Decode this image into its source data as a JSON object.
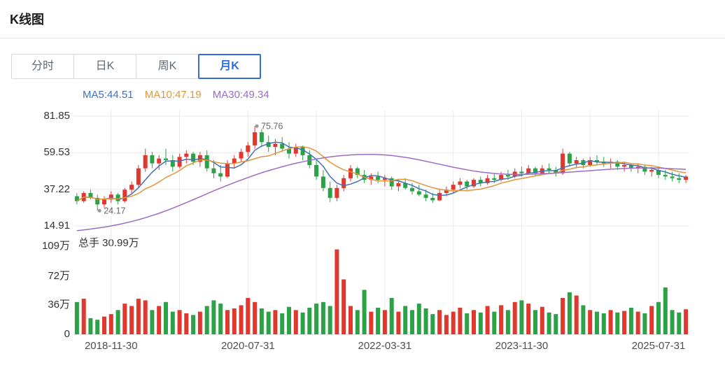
{
  "header": {
    "title": "K线图"
  },
  "tabs": [
    {
      "label": "分时",
      "active": false
    },
    {
      "label": "日K",
      "active": false
    },
    {
      "label": "周K",
      "active": false
    },
    {
      "label": "月K",
      "active": true
    }
  ],
  "legend": {
    "ma5": "MA5:44.51",
    "ma10": "MA10:47.19",
    "ma30": "MA30:49.34"
  },
  "volume_label": "总手 30.99万",
  "colors": {
    "up": "#e0382d",
    "down": "#2ba245",
    "ma5": "#4272b6",
    "ma10": "#e2953b",
    "ma30": "#9c6cc3",
    "tab_active": "#2e6be5",
    "grid": "#e9e9e9",
    "axis_text": "#333333"
  },
  "chart_data": {
    "type": "candlestick",
    "title": "月K K线图 (monthly candlestick with volume)",
    "price_range": [
      14.91,
      81.85
    ],
    "volume_range": [
      0,
      109
    ],
    "price_ticks": [
      {
        "label": "81.85",
        "value": 81.85
      },
      {
        "label": "59.53",
        "value": 59.53
      },
      {
        "label": "37.22",
        "value": 37.22
      },
      {
        "label": "14.91",
        "value": 14.91
      }
    ],
    "volume_ticks": [
      {
        "label": "109万",
        "value": 109
      },
      {
        "label": "72万",
        "value": 72
      },
      {
        "label": "36万",
        "value": 36
      },
      {
        "label": "0",
        "value": 0
      }
    ],
    "x_ticks": [
      {
        "label": "2018-11-30",
        "index": 5
      },
      {
        "label": "2020-07-31",
        "index": 25
      },
      {
        "label": "2022-03-31",
        "index": 45
      },
      {
        "label": "2023-11-30",
        "index": 65
      },
      {
        "label": "2025-07-31",
        "index": 85
      }
    ],
    "grid_indices": [
      5,
      15,
      25,
      35,
      45,
      55,
      65,
      75,
      85
    ],
    "annotations": [
      {
        "label": "75.76",
        "candle_index": 26,
        "price": 75.76,
        "position": "high"
      },
      {
        "label": "24.17",
        "candle_index": 3,
        "price": 24.17,
        "position": "low"
      }
    ],
    "candles_columns": [
      "month",
      "open",
      "high",
      "low",
      "close",
      "volume_wan"
    ],
    "candles": [
      [
        "2018-06",
        33,
        35,
        28,
        30,
        40
      ],
      [
        "2018-07",
        30,
        36,
        29,
        35,
        44
      ],
      [
        "2018-08",
        35,
        37,
        31,
        32,
        20
      ],
      [
        "2018-09",
        32,
        34,
        24.17,
        28,
        18
      ],
      [
        "2018-10",
        28,
        33,
        26,
        31,
        22
      ],
      [
        "2018-11",
        31,
        36,
        29,
        34,
        25
      ],
      [
        "2018-12",
        34,
        35,
        28,
        30,
        30
      ],
      [
        "2019-01",
        30,
        38,
        29,
        37,
        38
      ],
      [
        "2019-02",
        37,
        42,
        35,
        40,
        35
      ],
      [
        "2019-03",
        40,
        52,
        38,
        50,
        44
      ],
      [
        "2019-04",
        50,
        62,
        48,
        58,
        42
      ],
      [
        "2019-05",
        58,
        60,
        50,
        53,
        30
      ],
      [
        "2019-06",
        53,
        58,
        49,
        56,
        35
      ],
      [
        "2019-07",
        56,
        62,
        52,
        55,
        40
      ],
      [
        "2019-08",
        55,
        58,
        48,
        51,
        28
      ],
      [
        "2019-09",
        51,
        59,
        50,
        57,
        30
      ],
      [
        "2019-10",
        57,
        61,
        53,
        59,
        26
      ],
      [
        "2019-11",
        59,
        60,
        52,
        54,
        24
      ],
      [
        "2019-12",
        54,
        60,
        51,
        58,
        28
      ],
      [
        "2020-01",
        58,
        61,
        48,
        50,
        35
      ],
      [
        "2020-02",
        50,
        55,
        44,
        47,
        42
      ],
      [
        "2020-03",
        47,
        52,
        42,
        45,
        38
      ],
      [
        "2020-04",
        45,
        55,
        44,
        53,
        30
      ],
      [
        "2020-05",
        53,
        58,
        50,
        56,
        32
      ],
      [
        "2020-06",
        56,
        62,
        54,
        60,
        36
      ],
      [
        "2020-07",
        60,
        66,
        57,
        64,
        45
      ],
      [
        "2020-08",
        64,
        75.76,
        62,
        72,
        40
      ],
      [
        "2020-09",
        72,
        74,
        63,
        66,
        32
      ],
      [
        "2020-10",
        66,
        70,
        60,
        63,
        28
      ],
      [
        "2020-11",
        63,
        68,
        58,
        65,
        30
      ],
      [
        "2020-12",
        65,
        69,
        60,
        62,
        26
      ],
      [
        "2021-01",
        62,
        66,
        56,
        59,
        34
      ],
      [
        "2021-02",
        59,
        65,
        57,
        63,
        30
      ],
      [
        "2021-03",
        63,
        64,
        55,
        58,
        27
      ],
      [
        "2021-04",
        58,
        61,
        50,
        52,
        33
      ],
      [
        "2021-05",
        52,
        56,
        43,
        45,
        38
      ],
      [
        "2021-06",
        45,
        49,
        36,
        38,
        40
      ],
      [
        "2021-07",
        38,
        42,
        29.5,
        32,
        35
      ],
      [
        "2021-08",
        32,
        40,
        30,
        38,
        105
      ],
      [
        "2021-09",
        38,
        46,
        36,
        44,
        68
      ],
      [
        "2021-10",
        44,
        52,
        42,
        50,
        35
      ],
      [
        "2021-11",
        50,
        51,
        44,
        46,
        30
      ],
      [
        "2021-12",
        46,
        49,
        41,
        43,
        55
      ],
      [
        "2022-01",
        43,
        47,
        40,
        45,
        28
      ],
      [
        "2022-02",
        45,
        48,
        41,
        43,
        33
      ],
      [
        "2022-03",
        43,
        46,
        39,
        44,
        30
      ],
      [
        "2022-04",
        44,
        45,
        37,
        39,
        45
      ],
      [
        "2022-05",
        39,
        43,
        36,
        41,
        28
      ],
      [
        "2022-06",
        41,
        44,
        37,
        38,
        35
      ],
      [
        "2022-07",
        38,
        41,
        34,
        36,
        30
      ],
      [
        "2022-08",
        36,
        40,
        33,
        34,
        38
      ],
      [
        "2022-09",
        34,
        37,
        30,
        32,
        32
      ],
      [
        "2022-10",
        32,
        35,
        29,
        30.5,
        25
      ],
      [
        "2022-11",
        30.5,
        37,
        30,
        35,
        30
      ],
      [
        "2022-12",
        35,
        39,
        33,
        37,
        24
      ],
      [
        "2023-01",
        37,
        42,
        35,
        40,
        28
      ],
      [
        "2023-02",
        40,
        44,
        38,
        42,
        33
      ],
      [
        "2023-03",
        42,
        43,
        37,
        39,
        26
      ],
      [
        "2023-04",
        39,
        44,
        38,
        43,
        30
      ],
      [
        "2023-05",
        43,
        45,
        39,
        41,
        27
      ],
      [
        "2023-06",
        41,
        46,
        40,
        44,
        35
      ],
      [
        "2023-07",
        44,
        47,
        41,
        43,
        28
      ],
      [
        "2023-08",
        43,
        48,
        42,
        46,
        36
      ],
      [
        "2023-09",
        46,
        49,
        43,
        45,
        30
      ],
      [
        "2023-10",
        45,
        50,
        44,
        48,
        40
      ],
      [
        "2023-11",
        48,
        51,
        45,
        47,
        42
      ],
      [
        "2023-12",
        47,
        52,
        46,
        50,
        38
      ],
      [
        "2024-01",
        50,
        51,
        45,
        47,
        30
      ],
      [
        "2024-02",
        47,
        52,
        46,
        50,
        34
      ],
      [
        "2024-03",
        50,
        53,
        47,
        49,
        27
      ],
      [
        "2024-04",
        49,
        51,
        45,
        47,
        25
      ],
      [
        "2024-05",
        47,
        62,
        46,
        59,
        45
      ],
      [
        "2024-06",
        59,
        60,
        51,
        53,
        52
      ],
      [
        "2024-07",
        53,
        57,
        50,
        55,
        48
      ],
      [
        "2024-08",
        55,
        56,
        50,
        52,
        36
      ],
      [
        "2024-09",
        52,
        57,
        51,
        55,
        30
      ],
      [
        "2024-10",
        55,
        58,
        52,
        54,
        28
      ],
      [
        "2024-11",
        54,
        57,
        51,
        53,
        26
      ],
      [
        "2024-12",
        53,
        56,
        50,
        54,
        30
      ],
      [
        "2025-01",
        54,
        55,
        49,
        51,
        27
      ],
      [
        "2025-02",
        51,
        54,
        48,
        52,
        29
      ],
      [
        "2025-03",
        52,
        53,
        48,
        50,
        33
      ],
      [
        "2025-04",
        50,
        53,
        47,
        51,
        28
      ],
      [
        "2025-05",
        51,
        52,
        46,
        48,
        26
      ],
      [
        "2025-06",
        48,
        51,
        45,
        49,
        35
      ],
      [
        "2025-07",
        49,
        50,
        44,
        46,
        40
      ],
      [
        "2025-08",
        46,
        49,
        43,
        45,
        58
      ],
      [
        "2025-09",
        45,
        48,
        42,
        44,
        30
      ],
      [
        "2025-10",
        44,
        47,
        41,
        43,
        27
      ],
      [
        "2025-11",
        43,
        46,
        41,
        45,
        31
      ]
    ],
    "ma30": [
      12.0,
      12.5,
      13.0,
      13.6,
      14.2,
      14.9,
      15.7,
      16.6,
      17.6,
      18.7,
      19.9,
      21.2,
      22.6,
      24.1,
      25.7,
      27.4,
      29.1,
      30.9,
      32.7,
      34.5,
      36.3,
      38.0,
      39.7,
      41.3,
      42.9,
      44.4,
      45.9,
      47.3,
      48.6,
      49.8,
      51.0,
      52.1,
      53.1,
      54.0,
      54.9,
      55.7,
      56.4,
      57.0,
      57.5,
      57.9,
      58.2,
      58.4,
      58.5,
      58.5,
      58.4,
      58.2,
      57.8,
      57.3,
      56.7,
      56.0,
      55.2,
      54.3,
      53.4,
      52.5,
      51.6,
      50.7,
      49.9,
      49.1,
      48.4,
      47.8,
      47.3,
      46.9,
      46.6,
      46.4,
      46.3,
      46.3,
      46.4,
      46.5,
      46.7,
      46.9,
      47.1,
      47.4,
      47.7,
      48.0,
      48.3,
      48.6,
      48.9,
      49.2,
      49.5,
      49.7,
      49.9,
      50.1,
      50.2,
      50.3,
      50.3,
      50.2,
      50.0,
      49.8,
      49.6,
      49.34
    ]
  }
}
